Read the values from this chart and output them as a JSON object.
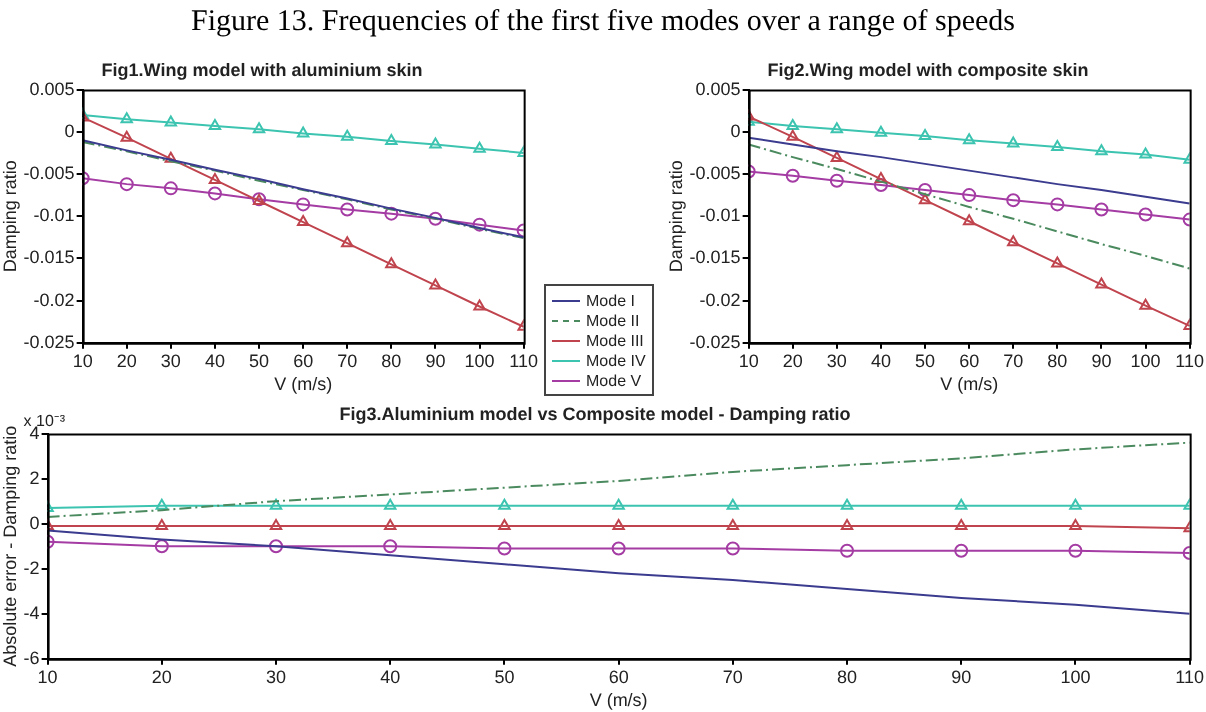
{
  "chart_data": [
    {
      "type": "other",
      "title": "Figure 13. Frequencies of the first five modes over a range of speeds"
    },
    {
      "type": "line",
      "title": "Fig1.Wing model with aluminium skin",
      "xlabel": "V (m/s)",
      "ylabel": "Damping ratio",
      "x": [
        10,
        20,
        30,
        40,
        50,
        60,
        70,
        80,
        90,
        100,
        110
      ],
      "xlim": [
        10,
        110
      ],
      "xticks": [
        10,
        20,
        30,
        40,
        50,
        60,
        70,
        80,
        90,
        100,
        110
      ],
      "ylim": [
        -0.025,
        0.005
      ],
      "yticks": [
        -0.025,
        -0.02,
        -0.015,
        -0.01,
        -0.005,
        0,
        0.005
      ],
      "grid": false,
      "legend": "bottom right",
      "series": [
        {
          "name": "Mode I",
          "color": "#3b3b8f",
          "marker": "none",
          "line_style": "solid",
          "values": [
            -0.001,
            -0.0022,
            -0.0033,
            -0.0045,
            -0.0056,
            -0.0068,
            -0.0079,
            -0.0091,
            -0.0102,
            -0.0114,
            -0.0125
          ]
        },
        {
          "name": "Mode II",
          "color": "#4a8a5e",
          "marker": "none",
          "line_style": "dashed",
          "values": [
            -0.0012,
            -0.0023,
            -0.0035,
            -0.0046,
            -0.0058,
            -0.0069,
            -0.008,
            -0.0092,
            -0.0103,
            -0.0115,
            -0.0126
          ]
        },
        {
          "name": "Mode III",
          "color": "#c0444e",
          "marker": "triangle",
          "line_style": "solid",
          "values": [
            0.0017,
            -0.0007,
            -0.0032,
            -0.0057,
            -0.0082,
            -0.0107,
            -0.0132,
            -0.0157,
            -0.0182,
            -0.0207,
            -0.0231
          ]
        },
        {
          "name": "Mode IV",
          "color": "#3cc4b0",
          "marker": "triangle",
          "line_style": "solid",
          "values": [
            0.002,
            0.0015,
            0.0011,
            0.0007,
            0.0003,
            -0.0002,
            -0.0006,
            -0.0011,
            -0.0015,
            -0.002,
            -0.0025
          ]
        },
        {
          "name": "Mode V",
          "color": "#a43ca4",
          "marker": "circle",
          "line_style": "solid",
          "values": [
            -0.0055,
            -0.0062,
            -0.0067,
            -0.0073,
            -0.008,
            -0.0086,
            -0.0092,
            -0.0097,
            -0.0103,
            -0.011,
            -0.0117
          ]
        }
      ]
    },
    {
      "type": "line",
      "title": "Fig2.Wing model with composite skin",
      "xlabel": "V (m/s)",
      "ylabel": "Damping ratio",
      "x": [
        10,
        20,
        30,
        40,
        50,
        60,
        70,
        80,
        90,
        100,
        110
      ],
      "xlim": [
        10,
        110
      ],
      "xticks": [
        10,
        20,
        30,
        40,
        50,
        60,
        70,
        80,
        90,
        100,
        110
      ],
      "ylim": [
        -0.025,
        0.005
      ],
      "yticks": [
        -0.025,
        -0.02,
        -0.015,
        -0.01,
        -0.005,
        0,
        0.005
      ],
      "grid": false,
      "series": [
        {
          "color": "#3b3b8f",
          "marker": "none",
          "line_style": "solid",
          "values": [
            -0.0007,
            -0.0015,
            -0.0023,
            -0.003,
            -0.0038,
            -0.0046,
            -0.0054,
            -0.0062,
            -0.0069,
            -0.0077,
            -0.0085
          ]
        },
        {
          "color": "#4a8a5e",
          "marker": "none",
          "line_style": "dashed",
          "values": [
            -0.0015,
            -0.003,
            -0.0044,
            -0.0059,
            -0.0074,
            -0.0089,
            -0.0103,
            -0.0118,
            -0.0133,
            -0.0147,
            -0.0162
          ]
        },
        {
          "color": "#c0444e",
          "marker": "triangle",
          "line_style": "solid",
          "values": [
            0.0018,
            -0.0006,
            -0.0031,
            -0.0056,
            -0.0081,
            -0.0106,
            -0.0131,
            -0.0156,
            -0.0181,
            -0.0206,
            -0.023
          ]
        },
        {
          "color": "#3cc4b0",
          "marker": "triangle",
          "line_style": "solid",
          "values": [
            0.0012,
            0.0007,
            0.0003,
            -0.0001,
            -0.0005,
            -0.001,
            -0.0014,
            -0.0018,
            -0.0023,
            -0.0027,
            -0.0033
          ]
        },
        {
          "color": "#a43ca4",
          "marker": "circle",
          "line_style": "solid",
          "values": [
            -0.0047,
            -0.0052,
            -0.0058,
            -0.0063,
            -0.0069,
            -0.0075,
            -0.0081,
            -0.0086,
            -0.0092,
            -0.0098,
            -0.0104
          ]
        }
      ]
    },
    {
      "type": "line",
      "title": "Fig3.Aluminium model vs Composite model - Damping ratio",
      "xlabel": "V (m/s)",
      "ylabel": "Absolute error - Damping ratio",
      "annotations": [
        "x 10⁻³"
      ],
      "x": [
        10,
        20,
        30,
        40,
        50,
        60,
        70,
        80,
        90,
        100,
        110
      ],
      "xlim": [
        10,
        110
      ],
      "xticks": [
        10,
        20,
        30,
        40,
        50,
        60,
        70,
        80,
        90,
        100,
        110
      ],
      "ylim": [
        -6,
        4
      ],
      "yticks": [
        -6,
        -4,
        -2,
        0,
        2,
        4
      ],
      "grid": false,
      "series": [
        {
          "color": "#3b3b8f",
          "marker": "none",
          "line_style": "solid",
          "values": [
            -0.3,
            -0.7,
            -1.0,
            -1.4,
            -1.8,
            -2.2,
            -2.5,
            -2.9,
            -3.3,
            -3.6,
            -4.0
          ]
        },
        {
          "color": "#4a8a5e",
          "marker": "none",
          "line_style": "dashed",
          "values": [
            0.3,
            0.6,
            1.0,
            1.3,
            1.6,
            1.9,
            2.3,
            2.6,
            2.9,
            3.3,
            3.6
          ]
        },
        {
          "color": "#c0444e",
          "marker": "triangle",
          "line_style": "solid",
          "values": [
            -0.1,
            -0.1,
            -0.1,
            -0.1,
            -0.1,
            -0.1,
            -0.1,
            -0.1,
            -0.1,
            -0.1,
            -0.2
          ]
        },
        {
          "color": "#3cc4b0",
          "marker": "triangle",
          "line_style": "solid",
          "values": [
            0.7,
            0.8,
            0.8,
            0.8,
            0.8,
            0.8,
            0.8,
            0.8,
            0.8,
            0.8,
            0.8
          ]
        },
        {
          "color": "#a43ca4",
          "marker": "circle",
          "line_style": "solid",
          "values": [
            -0.8,
            -1.0,
            -1.0,
            -1.0,
            -1.1,
            -1.1,
            -1.1,
            -1.2,
            -1.2,
            -1.2,
            -1.3
          ]
        }
      ]
    }
  ]
}
